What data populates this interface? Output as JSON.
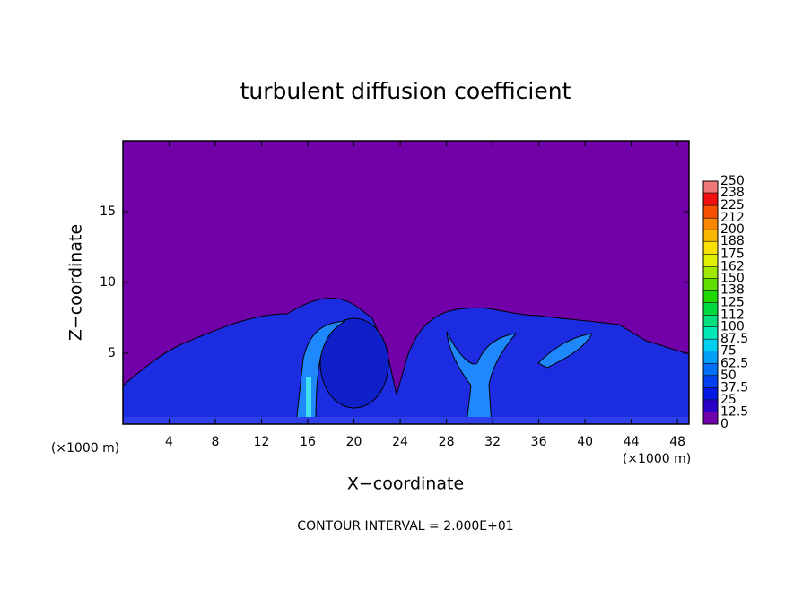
{
  "chart_data": {
    "type": "contour",
    "title": "turbulent diffusion coefficient",
    "xlabel": "X−coordinate",
    "ylabel": "Z−coordinate",
    "x_unit_left": "(×1000 m)",
    "x_unit_right": "(×1000 m)",
    "annotation": "CONTOUR INTERVAL = 2.000E+01",
    "xlim": [
      0,
      49
    ],
    "ylim": [
      0,
      20
    ],
    "xticks": [
      4,
      8,
      12,
      16,
      20,
      24,
      28,
      32,
      36,
      40,
      44,
      48
    ],
    "yticks": [
      5,
      10,
      15
    ],
    "background_color": "#7200a8",
    "colorbar": {
      "levels": [
        0,
        12.5,
        25,
        37.5,
        50,
        62.5,
        75,
        87.5,
        100,
        112,
        125,
        138,
        150,
        162,
        175,
        188,
        200,
        212,
        225,
        238,
        250
      ],
      "colors": [
        "#7000a8",
        "#2a00c8",
        "#0018e0",
        "#0040f0",
        "#0070f8",
        "#00a0f8",
        "#00d0f0",
        "#00e8b8",
        "#00e080",
        "#00d840",
        "#20d800",
        "#60e000",
        "#a0e800",
        "#e0f000",
        "#f8e000",
        "#f8b800",
        "#f88800",
        "#f85000",
        "#f01010",
        "#f07878"
      ]
    }
  }
}
